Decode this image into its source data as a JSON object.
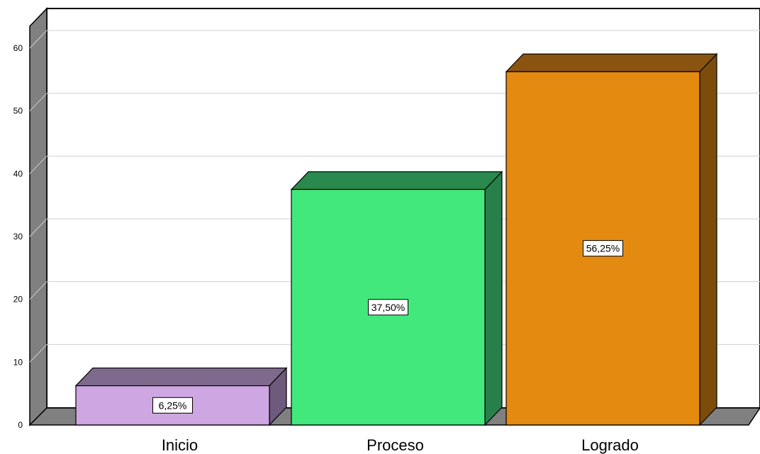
{
  "chart_data": {
    "type": "bar",
    "categories": [
      "Inicio",
      "Proceso",
      "Logrado"
    ],
    "values": [
      6.25,
      37.5,
      56.25
    ],
    "data_labels": [
      "6,25%",
      "37,50%",
      "56,25%"
    ],
    "ylim": [
      0,
      60
    ],
    "yticks": [
      "0",
      "10",
      "20",
      "30",
      "40",
      "50",
      "60"
    ],
    "title": "",
    "xlabel": "",
    "ylabel": "",
    "grid": true,
    "style": "3d",
    "colors": {
      "Inicio": {
        "front": "#cda6e2",
        "top": "#7e6a8c",
        "side": "#6e5a7c"
      },
      "Proceso": {
        "front": "#42e87c",
        "top": "#2a8a4e",
        "side": "#27804a"
      },
      "Logrado": {
        "front": "#e48a10",
        "top": "#8a5410",
        "side": "#7c4c0c"
      }
    }
  }
}
